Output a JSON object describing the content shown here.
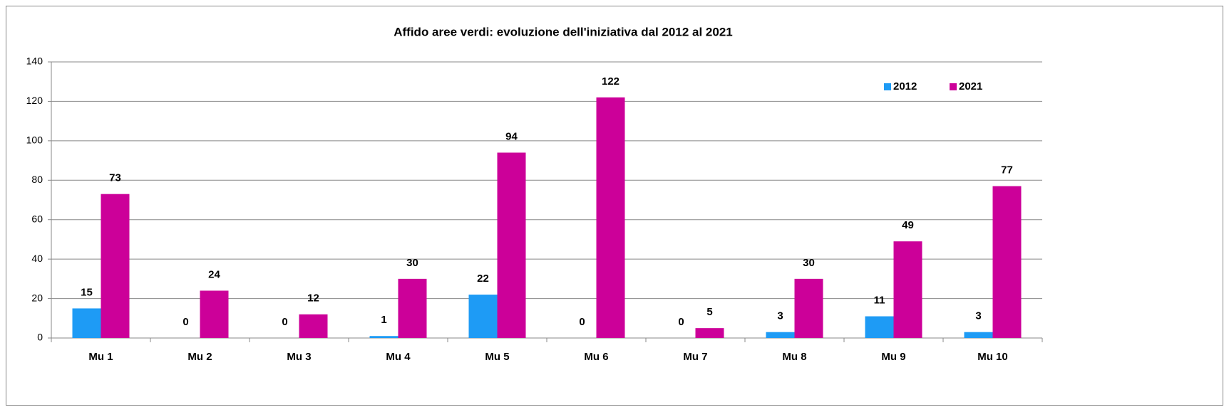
{
  "chart_data": {
    "type": "bar",
    "title": "Affido aree verdi: evoluzione dell'iniziativa dal 2012 al 2021",
    "categories": [
      "Mu 1",
      "Mu 2",
      "Mu 3",
      "Mu 4",
      "Mu 5",
      "Mu 6",
      "Mu 7",
      "Mu 8",
      "Mu 9",
      "Mu 10"
    ],
    "series": [
      {
        "name": "2012",
        "color": "#1e9bf5",
        "values": [
          15,
          0,
          0,
          1,
          22,
          0,
          0,
          3,
          11,
          3
        ]
      },
      {
        "name": "2021",
        "color": "#cc0099",
        "values": [
          73,
          24,
          12,
          30,
          94,
          122,
          5,
          30,
          49,
          77
        ]
      }
    ],
    "ylim": [
      0,
      140
    ],
    "yticks": [
      0,
      20,
      40,
      60,
      80,
      100,
      120,
      140
    ],
    "grid": true,
    "legend": "upper right"
  }
}
